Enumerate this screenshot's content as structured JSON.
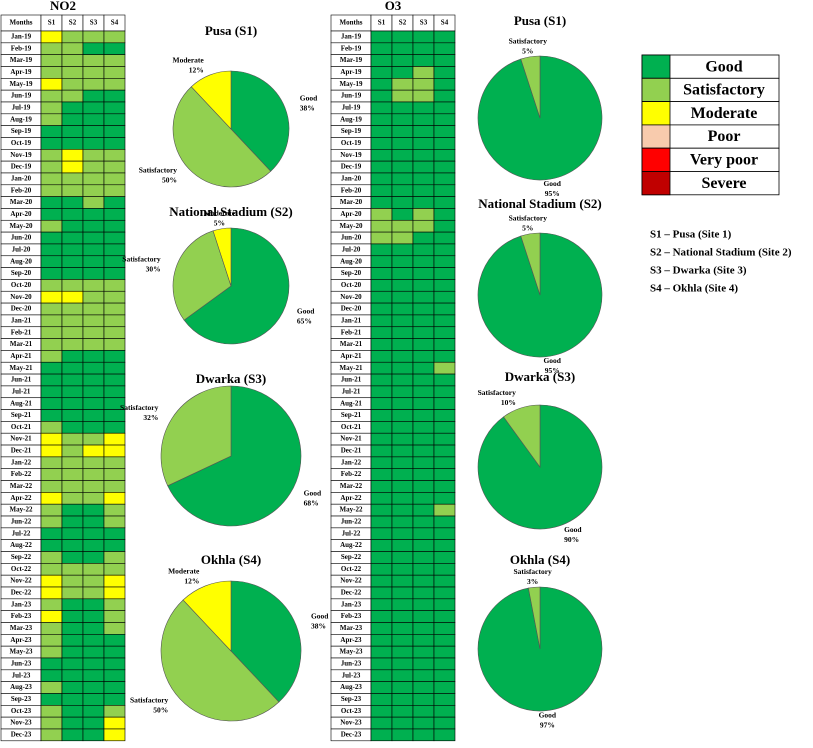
{
  "chart_data": [
    {
      "type": "heatmap",
      "title": "NO2",
      "row_header": "Months",
      "categories": [
        "Jan-19",
        "Feb-19",
        "Mar-19",
        "Apr-19",
        "May-19",
        "Jun-19",
        "Jul-19",
        "Aug-19",
        "Sep-19",
        "Oct-19",
        "Nov-19",
        "Dec-19",
        "Jan-20",
        "Feb-20",
        "Mar-20",
        "Apr-20",
        "May-20",
        "Jun-20",
        "Jul-20",
        "Aug-20",
        "Sep-20",
        "Oct-20",
        "Nov-20",
        "Dec-20",
        "Jan-21",
        "Feb-21",
        "Mar-21",
        "Apr-21",
        "May-21",
        "Jun-21",
        "Jul-21",
        "Aug-21",
        "Sep-21",
        "Oct-21",
        "Nov-21",
        "Dec-21",
        "Jan-22",
        "Feb-22",
        "Mar-22",
        "Apr-22",
        "May-22",
        "Jun-22",
        "Jul-22",
        "Aug-22",
        "Sep-22",
        "Oct-22",
        "Nov-22",
        "Dec-22",
        "Jan-23",
        "Feb-23",
        "Mar-23",
        "Apr-23",
        "May-23",
        "Jun-23",
        "Jul-23",
        "Aug-23",
        "Sep-23",
        "Oct-23",
        "Nov-23",
        "Dec-23"
      ],
      "series": [
        {
          "name": "S1",
          "values": [
            "Moderate",
            "Satisfactory",
            "Satisfactory",
            "Satisfactory",
            "Moderate",
            "Satisfactory",
            "Satisfactory",
            "Satisfactory",
            "Good",
            "Good",
            "Satisfactory",
            "Satisfactory",
            "Satisfactory",
            "Satisfactory",
            "Good",
            "Good",
            "Satisfactory",
            "Good",
            "Good",
            "Good",
            "Good",
            "Satisfactory",
            "Moderate",
            "Satisfactory",
            "Satisfactory",
            "Satisfactory",
            "Satisfactory",
            "Satisfactory",
            "Good",
            "Good",
            "Good",
            "Good",
            "Good",
            "Satisfactory",
            "Moderate",
            "Moderate",
            "Satisfactory",
            "Satisfactory",
            "Satisfactory",
            "Moderate",
            "Satisfactory",
            "Satisfactory",
            "Good",
            "Good",
            "Satisfactory",
            "Satisfactory",
            "Moderate",
            "Moderate",
            "Satisfactory",
            "Moderate",
            "Satisfactory",
            "Satisfactory",
            "Satisfactory",
            "Good",
            "Good",
            "Satisfactory",
            "Good",
            "Satisfactory",
            "Satisfactory",
            "Satisfactory"
          ]
        },
        {
          "name": "S2",
          "values": [
            "Satisfactory",
            "Satisfactory",
            "Satisfactory",
            "Satisfactory",
            "Satisfactory",
            "Satisfactory",
            "Good",
            "Good",
            "Good",
            "Good",
            "Moderate",
            "Moderate",
            "Satisfactory",
            "Satisfactory",
            "Good",
            "Good",
            "Good",
            "Good",
            "Good",
            "Good",
            "Good",
            "Satisfactory",
            "Moderate",
            "Satisfactory",
            "Satisfactory",
            "Satisfactory",
            "Satisfactory",
            "Good",
            "Good",
            "Good",
            "Good",
            "Good",
            "Good",
            "Good",
            "Satisfactory",
            "Satisfactory",
            "Satisfactory",
            "Satisfactory",
            "Satisfactory",
            "Satisfactory",
            "Good",
            "Good",
            "Good",
            "Good",
            "Good",
            "Satisfactory",
            "Satisfactory",
            "Satisfactory",
            "Good",
            "Good",
            "Good",
            "Good",
            "Good",
            "Good",
            "Good",
            "Good",
            "Good",
            "Good",
            "Good",
            "Good"
          ]
        },
        {
          "name": "S3",
          "values": [
            "Satisfactory",
            "Good",
            "Satisfactory",
            "Satisfactory",
            "Satisfactory",
            "Good",
            "Good",
            "Good",
            "Good",
            "Good",
            "Satisfactory",
            "Satisfactory",
            "Satisfactory",
            "Satisfactory",
            "Satisfactory",
            "Good",
            "Good",
            "Good",
            "Good",
            "Good",
            "Good",
            "Satisfactory",
            "Satisfactory",
            "Satisfactory",
            "Satisfactory",
            "Satisfactory",
            "Satisfactory",
            "Good",
            "Good",
            "Good",
            "Good",
            "Good",
            "Good",
            "Good",
            "Satisfactory",
            "Moderate",
            "Satisfactory",
            "Satisfactory",
            "Satisfactory",
            "Satisfactory",
            "Good",
            "Good",
            "Good",
            "Good",
            "Good",
            "Satisfactory",
            "Satisfactory",
            "Satisfactory",
            "Good",
            "Good",
            "Good",
            "Good",
            "Good",
            "Good",
            "Good",
            "Good",
            "Good",
            "Good",
            "Good",
            "Good"
          ]
        },
        {
          "name": "S4",
          "values": [
            "Satisfactory",
            "Good",
            "Satisfactory",
            "Satisfactory",
            "Satisfactory",
            "Good",
            "Good",
            "Good",
            "Good",
            "Good",
            "Satisfactory",
            "Satisfactory",
            "Satisfactory",
            "Satisfactory",
            "Good",
            "Good",
            "Good",
            "Good",
            "Good",
            "Good",
            "Good",
            "Satisfactory",
            "Satisfactory",
            "Satisfactory",
            "Satisfactory",
            "Satisfactory",
            "Satisfactory",
            "Good",
            "Good",
            "Good",
            "Good",
            "Good",
            "Good",
            "Good",
            "Moderate",
            "Moderate",
            "Satisfactory",
            "Satisfactory",
            "Satisfactory",
            "Moderate",
            "Satisfactory",
            "Satisfactory",
            "Good",
            "Good",
            "Satisfactory",
            "Satisfactory",
            "Moderate",
            "Moderate",
            "Satisfactory",
            "Satisfactory",
            "Satisfactory",
            "Good",
            "Good",
            "Good",
            "Good",
            "Good",
            "Good",
            "Satisfactory",
            "Moderate",
            "Moderate"
          ]
        }
      ]
    },
    {
      "type": "heatmap",
      "title": "O3",
      "row_header": "Months",
      "categories": [
        "Jan-19",
        "Feb-19",
        "Mar-19",
        "Apr-19",
        "May-19",
        "Jun-19",
        "Jul-19",
        "Aug-19",
        "Sep-19",
        "Oct-19",
        "Nov-19",
        "Dec-19",
        "Jan-20",
        "Feb-20",
        "Mar-20",
        "Apr-20",
        "May-20",
        "Jun-20",
        "Jul-20",
        "Aug-20",
        "Sep-20",
        "Oct-20",
        "Nov-20",
        "Dec-20",
        "Jan-21",
        "Feb-21",
        "Mar-21",
        "Apr-21",
        "May-21",
        "Jun-21",
        "Jul-21",
        "Aug-21",
        "Sep-21",
        "Oct-21",
        "Nov-21",
        "Dec-21",
        "Jan-22",
        "Feb-22",
        "Mar-22",
        "Apr-22",
        "May-22",
        "Jun-22",
        "Jul-22",
        "Aug-22",
        "Sep-22",
        "Oct-22",
        "Nov-22",
        "Dec-22",
        "Jan-23",
        "Feb-23",
        "Mar-23",
        "Apr-23",
        "May-23",
        "Jun-23",
        "Jul-23",
        "Aug-23",
        "Sep-23",
        "Oct-23",
        "Nov-23",
        "Dec-23"
      ],
      "series": [
        {
          "name": "S1",
          "values": [
            "Good",
            "Good",
            "Good",
            "Good",
            "Good",
            "Good",
            "Good",
            "Good",
            "Good",
            "Good",
            "Good",
            "Good",
            "Good",
            "Good",
            "Good",
            "Satisfactory",
            "Satisfactory",
            "Satisfactory",
            "Good",
            "Good",
            "Good",
            "Good",
            "Good",
            "Good",
            "Good",
            "Good",
            "Good",
            "Good",
            "Good",
            "Good",
            "Good",
            "Good",
            "Good",
            "Good",
            "Good",
            "Good",
            "Good",
            "Good",
            "Good",
            "Good",
            "Good",
            "Good",
            "Good",
            "Good",
            "Good",
            "Good",
            "Good",
            "Good",
            "Good",
            "Good",
            "Good",
            "Good",
            "Good",
            "Good",
            "Good",
            "Good",
            "Good",
            "Good",
            "Good",
            "Good"
          ]
        },
        {
          "name": "S2",
          "values": [
            "Good",
            "Good",
            "Good",
            "Good",
            "Satisfactory",
            "Satisfactory",
            "Good",
            "Good",
            "Good",
            "Good",
            "Good",
            "Good",
            "Good",
            "Good",
            "Good",
            "Good",
            "Satisfactory",
            "Satisfactory",
            "Good",
            "Good",
            "Good",
            "Good",
            "Good",
            "Good",
            "Good",
            "Good",
            "Good",
            "Good",
            "Good",
            "Good",
            "Good",
            "Good",
            "Good",
            "Good",
            "Good",
            "Good",
            "Good",
            "Good",
            "Good",
            "Good",
            "Good",
            "Good",
            "Good",
            "Good",
            "Good",
            "Good",
            "Good",
            "Good",
            "Good",
            "Good",
            "Good",
            "Good",
            "Good",
            "Good",
            "Good",
            "Good",
            "Good",
            "Good",
            "Good",
            "Good"
          ]
        },
        {
          "name": "S3",
          "values": [
            "Good",
            "Good",
            "Good",
            "Satisfactory",
            "Satisfactory",
            "Satisfactory",
            "Good",
            "Good",
            "Good",
            "Good",
            "Good",
            "Good",
            "Good",
            "Good",
            "Good",
            "Satisfactory",
            "Satisfactory",
            "Good",
            "Good",
            "Good",
            "Good",
            "Good",
            "Good",
            "Good",
            "Good",
            "Good",
            "Good",
            "Good",
            "Good",
            "Good",
            "Good",
            "Good",
            "Good",
            "Good",
            "Good",
            "Good",
            "Good",
            "Good",
            "Good",
            "Good",
            "Good",
            "Good",
            "Good",
            "Good",
            "Good",
            "Good",
            "Good",
            "Good",
            "Good",
            "Good",
            "Good",
            "Good",
            "Good",
            "Good",
            "Good",
            "Good",
            "Good",
            "Good",
            "Good",
            "Good"
          ]
        },
        {
          "name": "S4",
          "values": [
            "Good",
            "Good",
            "Good",
            "Good",
            "Good",
            "Good",
            "Good",
            "Good",
            "Good",
            "Good",
            "Good",
            "Good",
            "Good",
            "Good",
            "Good",
            "Good",
            "Good",
            "Good",
            "Good",
            "Good",
            "Good",
            "Good",
            "Good",
            "Good",
            "Good",
            "Good",
            "Good",
            "Good",
            "Satisfactory",
            "Good",
            "Good",
            "Good",
            "Good",
            "Good",
            "Good",
            "Good",
            "Good",
            "Good",
            "Good",
            "Good",
            "Satisfactory",
            "Good",
            "Good",
            "Good",
            "Good",
            "Good",
            "Good",
            "Good",
            "Good",
            "Good",
            "Good",
            "Good",
            "Good",
            "Good",
            "Good",
            "Good",
            "Good",
            "Good",
            "Good",
            "Good"
          ]
        }
      ]
    },
    {
      "type": "pie",
      "title": "Pusa (S1)",
      "categories": [
        "Good",
        "Satisfactory",
        "Moderate"
      ],
      "values": [
        38,
        50,
        12
      ],
      "value_labels": [
        "38%",
        "50%",
        "12%"
      ]
    },
    {
      "type": "pie",
      "title": "National Stadium (S2)",
      "categories": [
        "Good",
        "Satisfactory",
        "Moderate"
      ],
      "values": [
        65,
        30,
        5
      ],
      "value_labels": [
        "65%",
        "30%",
        "5%"
      ]
    },
    {
      "type": "pie",
      "title": "Dwarka (S3)",
      "categories": [
        "Good",
        "Satisfactory"
      ],
      "values": [
        68,
        32
      ],
      "value_labels": [
        "68%",
        "32%"
      ]
    },
    {
      "type": "pie",
      "title": "Okhla (S4)",
      "categories": [
        "Good",
        "Satisfactory",
        "Moderate"
      ],
      "values": [
        38,
        50,
        12
      ],
      "value_labels": [
        "38%",
        "50%",
        "12%"
      ]
    },
    {
      "type": "pie",
      "title": "Pusa (S1)",
      "categories": [
        "Good",
        "Satisfactory"
      ],
      "values": [
        95,
        5
      ],
      "value_labels": [
        "95%",
        "5%"
      ]
    },
    {
      "type": "pie",
      "title": "National Stadium (S2)",
      "categories": [
        "Good",
        "Satisfactory"
      ],
      "values": [
        95,
        5
      ],
      "value_labels": [
        "95%",
        "5%"
      ]
    },
    {
      "type": "pie",
      "title": "Dwarka (S3)",
      "categories": [
        "Good",
        "Satisfactory"
      ],
      "values": [
        90,
        10
      ],
      "value_labels": [
        "90%",
        "10%"
      ]
    },
    {
      "type": "pie",
      "title": "Okhla (S4)",
      "categories": [
        "Good",
        "Satisfactory"
      ],
      "values": [
        97,
        3
      ],
      "value_labels": [
        "97%",
        "3%"
      ]
    }
  ],
  "legend": {
    "items": [
      {
        "name": "Good",
        "color": "#00b050"
      },
      {
        "name": "Satisfactory",
        "color": "#92d050"
      },
      {
        "name": "Moderate",
        "color": "#ffff00"
      },
      {
        "name": "Poor",
        "color": "#f8cbad"
      },
      {
        "name": "Very poor",
        "color": "#ff0000"
      },
      {
        "name": "Severe",
        "color": "#c00000"
      }
    ],
    "notes": [
      "S1 – Pusa (Site 1)",
      "S2 – National Stadium (Site 2)",
      "S3 – Dwarka (Site 3)",
      "S4 – Okhla (Site 4)"
    ]
  }
}
